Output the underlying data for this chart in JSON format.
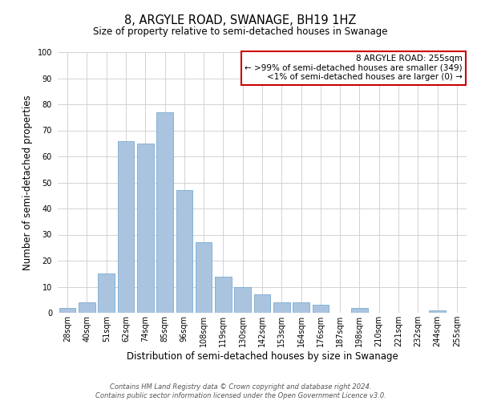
{
  "title": "8, ARGYLE ROAD, SWANAGE, BH19 1HZ",
  "subtitle": "Size of property relative to semi-detached houses in Swanage",
  "xlabel": "Distribution of semi-detached houses by size in Swanage",
  "ylabel": "Number of semi-detached properties",
  "bar_labels": [
    "28sqm",
    "40sqm",
    "51sqm",
    "62sqm",
    "74sqm",
    "85sqm",
    "96sqm",
    "108sqm",
    "119sqm",
    "130sqm",
    "142sqm",
    "153sqm",
    "164sqm",
    "176sqm",
    "187sqm",
    "198sqm",
    "210sqm",
    "221sqm",
    "232sqm",
    "244sqm",
    "255sqm"
  ],
  "bar_values": [
    2,
    4,
    15,
    66,
    65,
    77,
    47,
    27,
    14,
    10,
    7,
    4,
    4,
    3,
    0,
    2,
    0,
    0,
    0,
    1,
    0
  ],
  "bar_color": "#aac4e0",
  "bar_edge_color": "#7aabcf",
  "ylim": [
    0,
    100
  ],
  "yticks": [
    0,
    10,
    20,
    30,
    40,
    50,
    60,
    70,
    80,
    90,
    100
  ],
  "grid_color": "#cccccc",
  "background_color": "#ffffff",
  "annotation_box_text_line1": "8 ARGYLE ROAD: 255sqm",
  "annotation_box_text_line2": "← >99% of semi-detached houses are smaller (349)",
  "annotation_box_text_line3": "<1% of semi-detached houses are larger (0) →",
  "annotation_box_edge_color": "#cc0000",
  "annotation_box_bg_color": "#ffffff",
  "footer_line1": "Contains HM Land Registry data © Crown copyright and database right 2024.",
  "footer_line2": "Contains public sector information licensed under the Open Government Licence v3.0.",
  "title_fontsize": 10.5,
  "subtitle_fontsize": 8.5,
  "axis_label_fontsize": 8.5,
  "tick_fontsize": 7,
  "annotation_fontsize": 7.5,
  "footer_fontsize": 6
}
